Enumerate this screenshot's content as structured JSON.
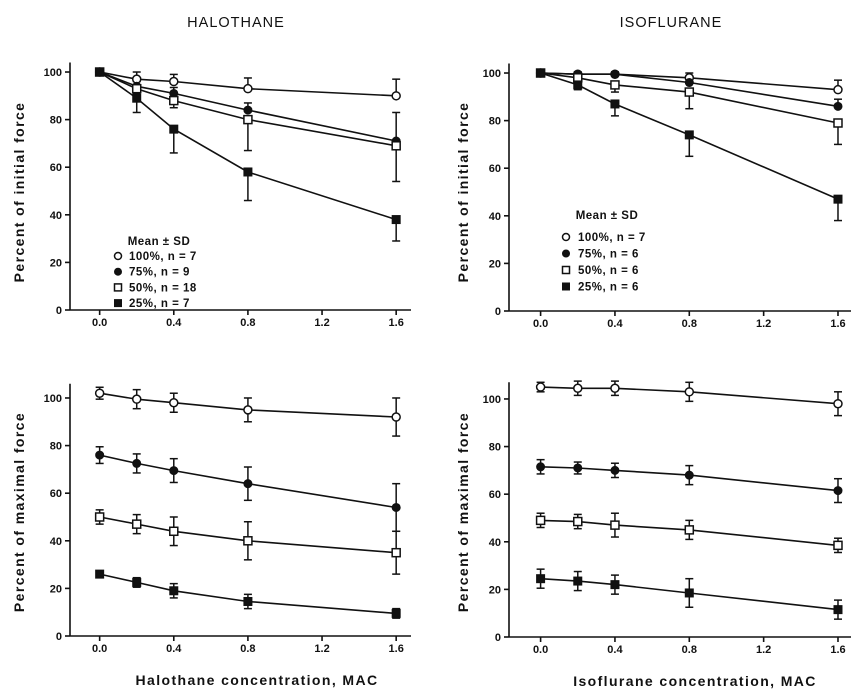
{
  "columns": [
    "HALOTHANE",
    "ISOFLURANE"
  ],
  "chart_data": [
    {
      "type": "line",
      "ylabel": "Percent of initial force",
      "x": [
        0,
        0.2,
        0.4,
        0.8,
        1.6
      ],
      "xlim": [
        -0.16,
        1.68
      ],
      "ylim": [
        0,
        104
      ],
      "xticks": [
        0,
        0.4,
        0.8,
        1.2,
        1.6
      ],
      "xtick_labels": [
        "0.0",
        "0.4",
        "0.8",
        "1.2",
        "1.6"
      ],
      "yticks": [
        0,
        20,
        40,
        60,
        80,
        100
      ],
      "ytick_labels": [
        "0",
        "20",
        "40",
        "60",
        "80",
        "100"
      ],
      "grid": false,
      "legend": {
        "position": "lower-left",
        "title": "Mean ± SD"
      },
      "series": [
        {
          "name": "100%, n = 7",
          "marker": "open-circle",
          "values": [
            100,
            97,
            96,
            93,
            90
          ],
          "sd_up": [
            0,
            3,
            3,
            4.5,
            7
          ],
          "sd_down": [
            0,
            0,
            0,
            0,
            0
          ]
        },
        {
          "name": "75%, n = 9",
          "marker": "filled-circle",
          "values": [
            100,
            94,
            91,
            84,
            71
          ],
          "sd_up": [
            0,
            2,
            2.5,
            3,
            12
          ],
          "sd_down": [
            0,
            0,
            0,
            0,
            0
          ]
        },
        {
          "name": "50%, n = 18",
          "marker": "open-square",
          "values": [
            100,
            93,
            88,
            80,
            69
          ],
          "sd_up": [
            0,
            0,
            0,
            0,
            0
          ],
          "sd_down": [
            0,
            2,
            3,
            13,
            15
          ]
        },
        {
          "name": "25%, n = 7",
          "marker": "filled-square",
          "values": [
            100,
            89,
            76,
            58,
            38
          ],
          "sd_up": [
            0,
            0,
            0,
            0,
            0
          ],
          "sd_down": [
            0,
            6,
            10,
            12,
            9
          ]
        }
      ]
    },
    {
      "type": "line",
      "ylabel": "Percent of initial force",
      "x": [
        0,
        0.2,
        0.4,
        0.8,
        1.6
      ],
      "xlim": [
        -0.17,
        1.67
      ],
      "ylim": [
        0,
        104
      ],
      "xticks": [
        0,
        0.4,
        0.8,
        1.2,
        1.6
      ],
      "xtick_labels": [
        "0.0",
        "0.4",
        "0.8",
        "1.2",
        "1.6"
      ],
      "yticks": [
        0,
        20,
        40,
        60,
        80,
        100
      ],
      "ytick_labels": [
        "0",
        "20",
        "40",
        "60",
        "80",
        "100"
      ],
      "grid": false,
      "legend": {
        "position": "lower-left",
        "title": "Mean ± SD"
      },
      "series": [
        {
          "name": "100%, n = 7",
          "marker": "open-circle",
          "values": [
            100,
            99.5,
            99.5,
            98,
            93
          ],
          "sd_up": [
            0,
            1,
            1,
            2,
            4
          ],
          "sd_down": [
            0,
            0,
            0,
            0,
            0
          ]
        },
        {
          "name": "75%, n = 6",
          "marker": "filled-circle",
          "values": [
            100,
            99.5,
            99.5,
            96,
            86
          ],
          "sd_up": [
            0,
            0.5,
            0.5,
            2,
            3
          ],
          "sd_down": [
            0,
            0,
            0,
            0,
            0
          ]
        },
        {
          "name": "50%, n = 6",
          "marker": "open-square",
          "values": [
            100,
            98,
            95,
            92,
            79
          ],
          "sd_up": [
            0,
            0,
            0,
            0,
            0
          ],
          "sd_down": [
            0,
            2,
            3,
            7,
            9
          ]
        },
        {
          "name": "25%, n = 6",
          "marker": "filled-square",
          "values": [
            100,
            95,
            87,
            74,
            47
          ],
          "sd_up": [
            0,
            0,
            0,
            0,
            0
          ],
          "sd_down": [
            0,
            2,
            5,
            9,
            9
          ]
        }
      ]
    },
    {
      "type": "line",
      "xlabel": "Halothane concentration, MAC",
      "ylabel": "Percent of maximal force",
      "x": [
        0,
        0.2,
        0.4,
        0.8,
        1.6
      ],
      "xlim": [
        -0.16,
        1.68
      ],
      "ylim": [
        0,
        106
      ],
      "xticks": [
        0,
        0.4,
        0.8,
        1.2,
        1.6
      ],
      "xtick_labels": [
        "0.0",
        "0.4",
        "0.8",
        "1.2",
        "1.6"
      ],
      "yticks": [
        0,
        20,
        40,
        60,
        80,
        100
      ],
      "ytick_labels": [
        "0",
        "20",
        "40",
        "60",
        "80",
        "100"
      ],
      "grid": false,
      "series": [
        {
          "marker": "open-circle",
          "values": [
            102,
            99.5,
            98,
            95,
            92
          ],
          "sd_up": [
            2.5,
            4,
            4,
            5,
            8
          ],
          "sd_down": [
            2.5,
            4,
            4,
            5,
            8
          ]
        },
        {
          "marker": "filled-circle",
          "values": [
            76,
            72.5,
            69.5,
            64,
            54
          ],
          "sd_up": [
            3.5,
            4,
            5,
            7,
            10
          ],
          "sd_down": [
            3.5,
            4,
            5,
            7,
            10
          ]
        },
        {
          "marker": "open-square",
          "values": [
            50,
            47,
            44,
            40,
            35
          ],
          "sd_up": [
            3,
            4,
            6,
            8,
            9
          ],
          "sd_down": [
            3,
            4,
            6,
            8,
            9
          ]
        },
        {
          "marker": "filled-square",
          "values": [
            26,
            22.5,
            19,
            14.5,
            9.5
          ],
          "sd_up": [
            1,
            2,
            3,
            3,
            2
          ],
          "sd_down": [
            1,
            2,
            3,
            3,
            2
          ]
        }
      ]
    },
    {
      "type": "line",
      "xlabel": "Isoflurane concentration, MAC",
      "ylabel": "Percent of maximal force",
      "x": [
        0,
        0.2,
        0.4,
        0.8,
        1.6
      ],
      "xlim": [
        -0.17,
        1.67
      ],
      "ylim": [
        0,
        107
      ],
      "xticks": [
        0,
        0.4,
        0.8,
        1.2,
        1.6
      ],
      "xtick_labels": [
        "0.0",
        "0.4",
        "0.8",
        "1.2",
        "1.6"
      ],
      "yticks": [
        0,
        20,
        40,
        60,
        80,
        100
      ],
      "ytick_labels": [
        "0",
        "20",
        "40",
        "60",
        "80",
        "100"
      ],
      "grid": false,
      "series": [
        {
          "marker": "open-circle",
          "values": [
            105,
            104.5,
            104.5,
            103,
            98
          ],
          "sd_up": [
            2,
            3,
            3,
            4,
            5
          ],
          "sd_down": [
            2,
            3,
            3,
            4,
            5
          ]
        },
        {
          "marker": "filled-circle",
          "values": [
            71.5,
            71,
            70,
            68,
            61.5
          ],
          "sd_up": [
            3,
            2.5,
            3,
            4,
            5
          ],
          "sd_down": [
            3,
            2.5,
            3,
            4,
            5
          ]
        },
        {
          "marker": "open-square",
          "values": [
            49,
            48.5,
            47,
            45,
            38.5
          ],
          "sd_up": [
            3,
            3,
            5,
            4,
            3
          ],
          "sd_down": [
            3,
            3,
            5,
            4,
            3
          ]
        },
        {
          "marker": "filled-square",
          "values": [
            24.5,
            23.5,
            22,
            18.5,
            11.5
          ],
          "sd_up": [
            4,
            4,
            4,
            6,
            4
          ],
          "sd_down": [
            4,
            4,
            4,
            6,
            4
          ]
        }
      ]
    }
  ]
}
